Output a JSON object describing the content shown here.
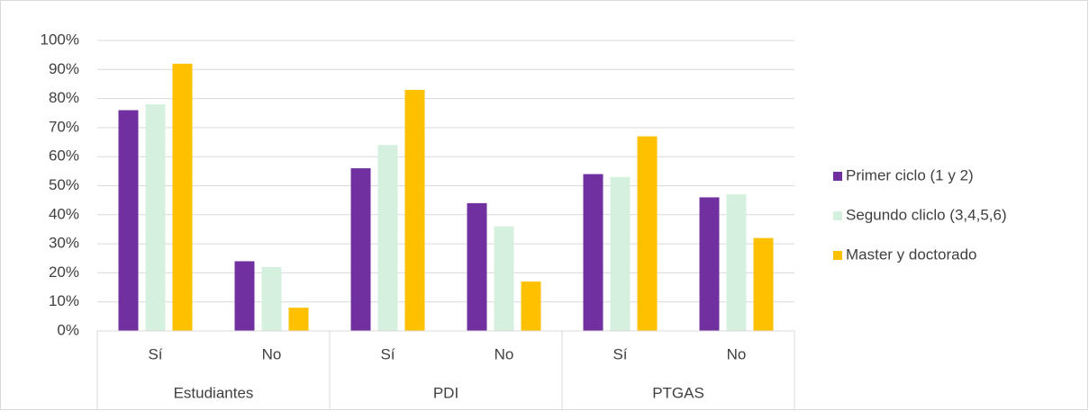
{
  "chart_data": {
    "type": "bar",
    "categories": [
      "Sí",
      "No",
      "Sí",
      "No",
      "Sí",
      "No"
    ],
    "groups": [
      "Estudiantes",
      "PDI",
      "PTGAS"
    ],
    "series": [
      {
        "name": "Primer ciclo (1 y 2)",
        "color": "#7030a0",
        "values": [
          76,
          24,
          56,
          44,
          54,
          46
        ]
      },
      {
        "name": "Segundo cliclo (3,4,5,6)",
        "color": "#d5f0df",
        "values": [
          78,
          22,
          64,
          36,
          53,
          47
        ]
      },
      {
        "name": "Master y doctorado",
        "color": "#ffc000",
        "values": [
          92,
          8,
          83,
          17,
          67,
          32
        ]
      }
    ],
    "ylim": [
      0,
      100
    ],
    "yticks": [
      {
        "value": 0,
        "label": "0%"
      },
      {
        "value": 10,
        "label": "10%"
      },
      {
        "value": 20,
        "label": "20%"
      },
      {
        "value": 30,
        "label": "30%"
      },
      {
        "value": 40,
        "label": "40%"
      },
      {
        "value": 50,
        "label": "50%"
      },
      {
        "value": 60,
        "label": "60%"
      },
      {
        "value": 70,
        "label": "70%"
      },
      {
        "value": 80,
        "label": "80%"
      },
      {
        "value": 90,
        "label": "90%"
      },
      {
        "value": 100,
        "label": "100%"
      }
    ],
    "grid": true,
    "legend": "right"
  }
}
